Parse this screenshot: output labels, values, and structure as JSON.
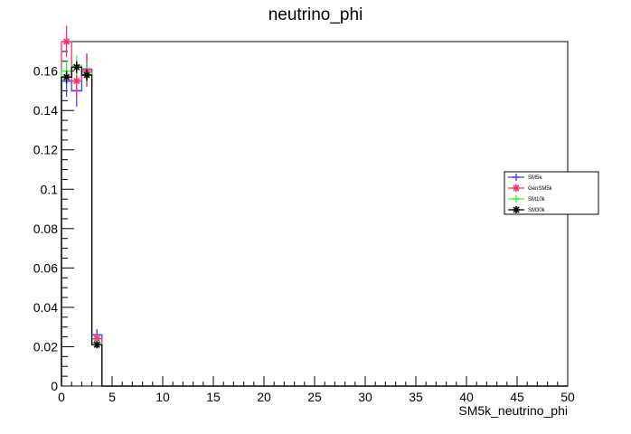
{
  "chart_data": {
    "type": "line",
    "title": "neutrino_phi",
    "xlabel": "SM5k_neutrino_phi",
    "ylabel": "",
    "xlim": [
      0,
      50
    ],
    "ylim": [
      0,
      0.175
    ],
    "x_ticks": [
      "0",
      "5",
      "10",
      "15",
      "20",
      "25",
      "30",
      "35",
      "40",
      "45",
      "50"
    ],
    "y_ticks": [
      "0",
      "0.02",
      "0.04",
      "0.06",
      "0.08",
      "0.1",
      "0.12",
      "0.14",
      "0.16"
    ],
    "y_tick_values": [
      0,
      0.02,
      0.04,
      0.06,
      0.08,
      0.1,
      0.12,
      0.14,
      0.16
    ],
    "bin_edges": [
      0,
      1,
      2,
      3,
      4
    ],
    "legend_position": "right",
    "series": [
      {
        "name": "SM5k",
        "color": "#3f3fff",
        "marker": "plus",
        "values": [
          0.155,
          0.15,
          0.161,
          0.026
        ],
        "errors": [
          0.008,
          0.008,
          0.008,
          0.003
        ]
      },
      {
        "name": "GenSM5k",
        "color": "#ff2f6f",
        "marker": "star",
        "values": [
          0.175,
          0.155,
          0.16,
          0.024
        ],
        "errors": [
          0.008,
          0.008,
          0.008,
          0.003
        ]
      },
      {
        "name": "SM10k",
        "color": "#33ff33",
        "marker": "plus",
        "values": [
          0.16,
          0.163,
          0.159,
          0.022
        ],
        "errors": [
          0.005,
          0.005,
          0.005,
          0.002
        ]
      },
      {
        "name": "SM30k",
        "color": "#000000",
        "marker": "star",
        "values": [
          0.157,
          0.162,
          0.158,
          0.021
        ],
        "errors": [
          0.003,
          0.003,
          0.003,
          0.001
        ]
      }
    ]
  }
}
